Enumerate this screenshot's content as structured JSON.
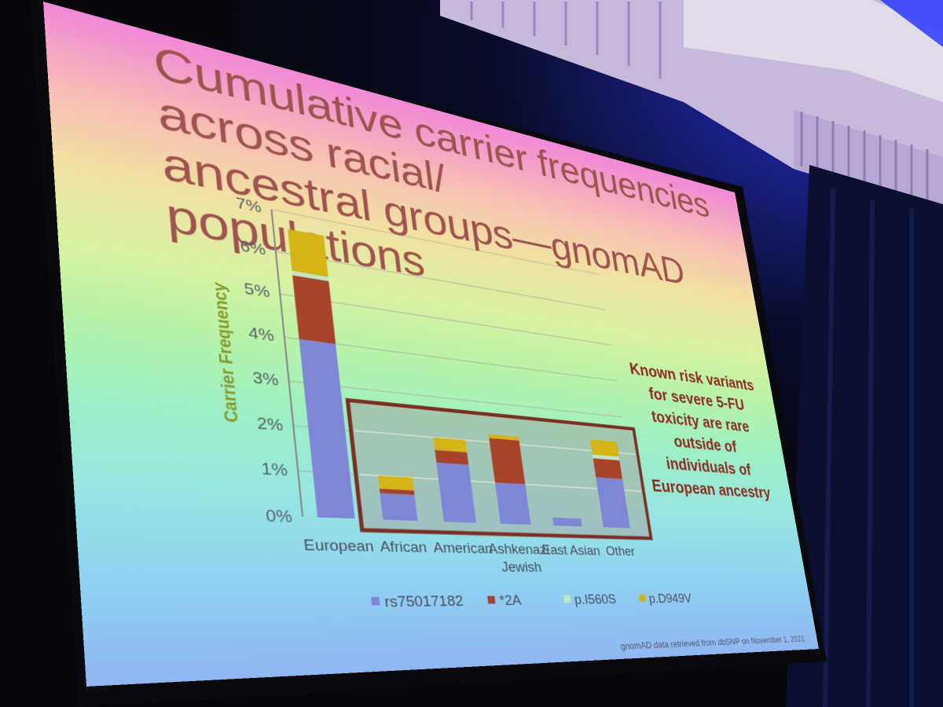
{
  "slide": {
    "title_line1": "Cumulative carrier frequencies across racial/",
    "title_line2": "ancestral groups—gnomAD populations",
    "callout": "Known risk variants for severe 5-FU toxicity are rare outside of individuals of European ancestry",
    "source": "gnomAD data retrieved from dbSNP on November 1, 2021"
  },
  "chart_data": {
    "type": "bar",
    "stacked": true,
    "title": "",
    "xlabel": "",
    "ylabel": "Carrier Frequency",
    "ylim": [
      0,
      7
    ],
    "yticks": [
      "0%",
      "1%",
      "2%",
      "3%",
      "4%",
      "5%",
      "6%",
      "7%"
    ],
    "categories": [
      "European",
      "African",
      "American",
      "Ashkenazi Jewish",
      "East Asian",
      "Other"
    ],
    "series": [
      {
        "name": "rs75017182",
        "color": "#7f86d6",
        "values": [
          4.0,
          0.6,
          1.4,
          1.0,
          0.2,
          1.3
        ]
      },
      {
        "name": "*2A",
        "color": "#a7432b",
        "values": [
          1.5,
          0.1,
          0.3,
          1.1,
          0.0,
          0.5
        ]
      },
      {
        "name": "p.I560S",
        "color": "#bfe6c6",
        "values": [
          0.1,
          0.0,
          0.0,
          0.0,
          0.0,
          0.1
        ]
      },
      {
        "name": "p.D949V",
        "color": "#d4b416",
        "values": [
          1.0,
          0.3,
          0.3,
          0.1,
          0.0,
          0.4
        ]
      }
    ],
    "grid": true,
    "legend": "bottom",
    "highlight_box": "African through Other"
  },
  "colors": {
    "title_text": "#a0524f",
    "callout_text": "#8c2b22",
    "ylabel_text": "#8a9a2a",
    "highlight_border": "#7a2f22"
  }
}
